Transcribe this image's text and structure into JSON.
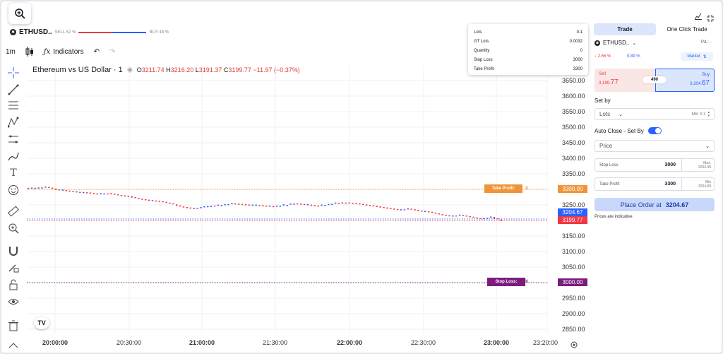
{
  "symbol": {
    "name": "ETHUSD..",
    "sell_pct": "SELL 52 %",
    "buy_pct": "BUY 48 %"
  },
  "toolbar": {
    "interval": "1m",
    "indicators": "Indicators"
  },
  "legend": {
    "title": "Ethereum vs US Dollar · 1",
    "o_label": "O",
    "o": "3211.74",
    "h_label": "H",
    "h": "3216.20",
    "l_label": "L",
    "l": "3191.37",
    "c_label": "C",
    "c": "3199.77",
    "change": "−11.97 (−0.37%)"
  },
  "popup": {
    "rows": [
      {
        "label": "Lots",
        "value": "0.1"
      },
      {
        "label": "GT Lots",
        "value": "0.0032"
      },
      {
        "label": "Quantity",
        "value": "0"
      },
      {
        "label": "Stop Loss",
        "value": "3000"
      },
      {
        "label": "Take Profit",
        "value": "3300"
      }
    ]
  },
  "y_ticks": [
    "3650.00",
    "3600.00",
    "3550.00",
    "3500.00",
    "3450.00",
    "3400.00",
    "3350.00",
    "3250.00",
    "3150.00",
    "3100.00",
    "3050.00",
    "2950.00",
    "2900.00",
    "2850.00"
  ],
  "x_ticks": [
    "20:00:00",
    "20:30:00",
    "21:00:00",
    "21:30:00",
    "22:00:00",
    "22:30:00",
    "23:00:00",
    "23:20:00"
  ],
  "price_tags": {
    "take_profit": "3300.00",
    "buy": "3204.67",
    "last": "3199.77",
    "stop_loss": "3000.00"
  },
  "order_lines": {
    "take_profit": "Take Profit:",
    "stop_loss": "Stop Loss:"
  },
  "chart_data": {
    "type": "candlestick",
    "x_ticks": [
      "20:00:00",
      "20:30:00",
      "21:00:00",
      "21:30:00",
      "22:00:00",
      "22:30:00",
      "23:00:00",
      "23:20:00"
    ],
    "ylim": [
      2830,
      3670
    ],
    "series": [
      {
        "values": [
          3305,
          3308,
          3300,
          3296,
          3292,
          3290,
          3285,
          3288,
          3282,
          3278,
          3270,
          3265,
          3262,
          3255,
          3245,
          3240,
          3242,
          3248,
          3250,
          3255,
          3252,
          3250,
          3248,
          3245,
          3250,
          3255,
          3252,
          3248,
          3250,
          3256,
          3258,
          3255,
          3250,
          3245,
          3240,
          3235,
          3238,
          3232,
          3228,
          3220,
          3215,
          3218,
          3212,
          3205,
          3211,
          3199
        ]
      }
    ],
    "levels": {
      "take_profit": 3300,
      "stop_loss": 3000,
      "buy": 3204.67,
      "last": 3199.77
    }
  },
  "panel": {
    "tab_trade": "Trade",
    "tab_oneclick": "One Click Trade",
    "symbol": "ETHUSD..",
    "pl": "P/L: -",
    "change_pct": "↓ 2.66 %",
    "spread_pct": "0.89 %",
    "market": "Market",
    "sell_label": "Sell",
    "sell_price_main": "3,199.",
    "sell_price_big": "77",
    "buy_label": "Buy",
    "buy_price_main": "3,204.",
    "buy_price_big": "67",
    "spread": "490",
    "set_by": "Set by",
    "lots": "Lots",
    "min_lots": "Min 0.1",
    "auto_close": "Auto Close - Set By",
    "price_select": "Price",
    "stop_loss_label": "Stop Loss",
    "stop_loss_value": "3000",
    "stop_loss_max_label": "Max:",
    "stop_loss_max": "3204.45",
    "take_profit_label": "Take Profit",
    "take_profit_value": "3300",
    "take_profit_min_label": "Min",
    "take_profit_min": "3204.89",
    "place_order": "Place Order at",
    "place_order_price": "3204.67",
    "indicative": "Prices are indicative"
  },
  "colors": {
    "up": "#2962ff",
    "down": "#f23645",
    "take_profit": "#f0943a",
    "stop_loss": "#7b1c7e",
    "accent": "#2962ff"
  }
}
